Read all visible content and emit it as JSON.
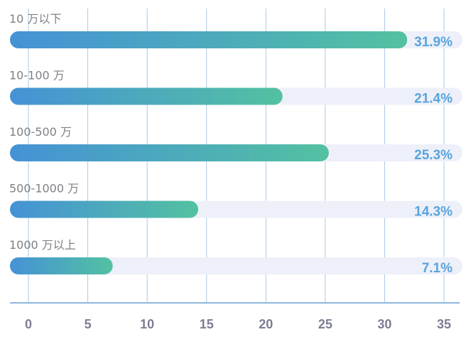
{
  "chart_data": {
    "type": "bar",
    "orientation": "horizontal",
    "categories": [
      "10 万以下",
      "10-100 万",
      "100-500 万",
      "500-1000 万",
      "1000 万以上"
    ],
    "values": [
      31.9,
      21.4,
      25.3,
      14.3,
      7.1
    ],
    "value_labels": [
      "31.9%",
      "21.4%",
      "25.3%",
      "14.3%",
      "7.1%"
    ],
    "xlim": [
      0,
      35
    ],
    "xticks": [
      0,
      5,
      10,
      15,
      20,
      25,
      30,
      35
    ],
    "xtick_labels": [
      "0",
      "5",
      "10",
      "15",
      "20",
      "25",
      "30",
      "35"
    ],
    "grid": "vertical",
    "colors": {
      "bar_start": "#4592d6",
      "bar_end": "#53c1a1",
      "track": "#edf0f9",
      "grid": "#a9c9e6",
      "axis": "#8fb6df",
      "value_label": "#5aa4dc"
    }
  }
}
